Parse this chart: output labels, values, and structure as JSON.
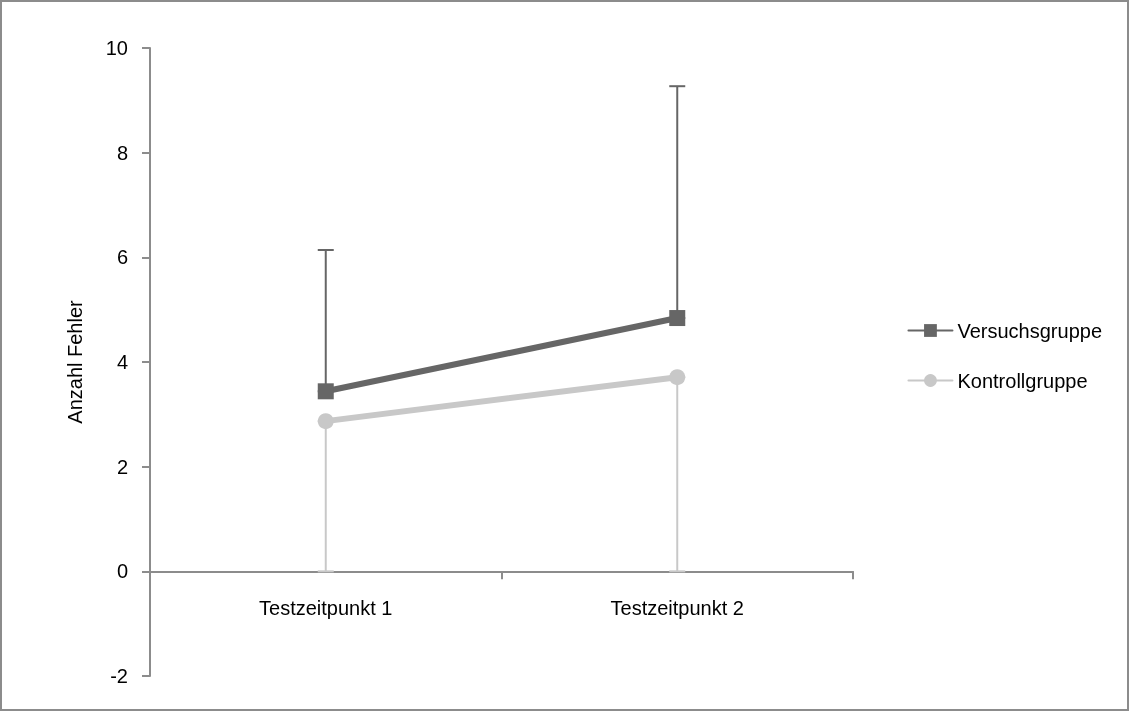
{
  "chart_data": {
    "type": "line",
    "ylabel": "Anzahl Fehler",
    "categories": [
      "Testzeitpunkt 1",
      "Testzeitpunkt 2"
    ],
    "series": [
      {
        "name": "Versuchsgruppe",
        "color": "#666666",
        "marker": "square",
        "values": [
          3.44,
          4.84
        ],
        "errors": [
          [
            3.44,
            6.14
          ],
          [
            4.84,
            9.27
          ]
        ]
      },
      {
        "name": "Kontrollgruppe",
        "color": "#c8c8c8",
        "marker": "circle",
        "values": [
          2.87,
          3.71
        ],
        "errors": [
          [
            0,
            2.87
          ],
          [
            0,
            3.71
          ]
        ]
      }
    ],
    "ylim": [
      -2,
      10
    ],
    "yticks": [
      -2,
      0,
      2,
      4,
      6,
      8,
      10
    ],
    "legend": "right"
  }
}
